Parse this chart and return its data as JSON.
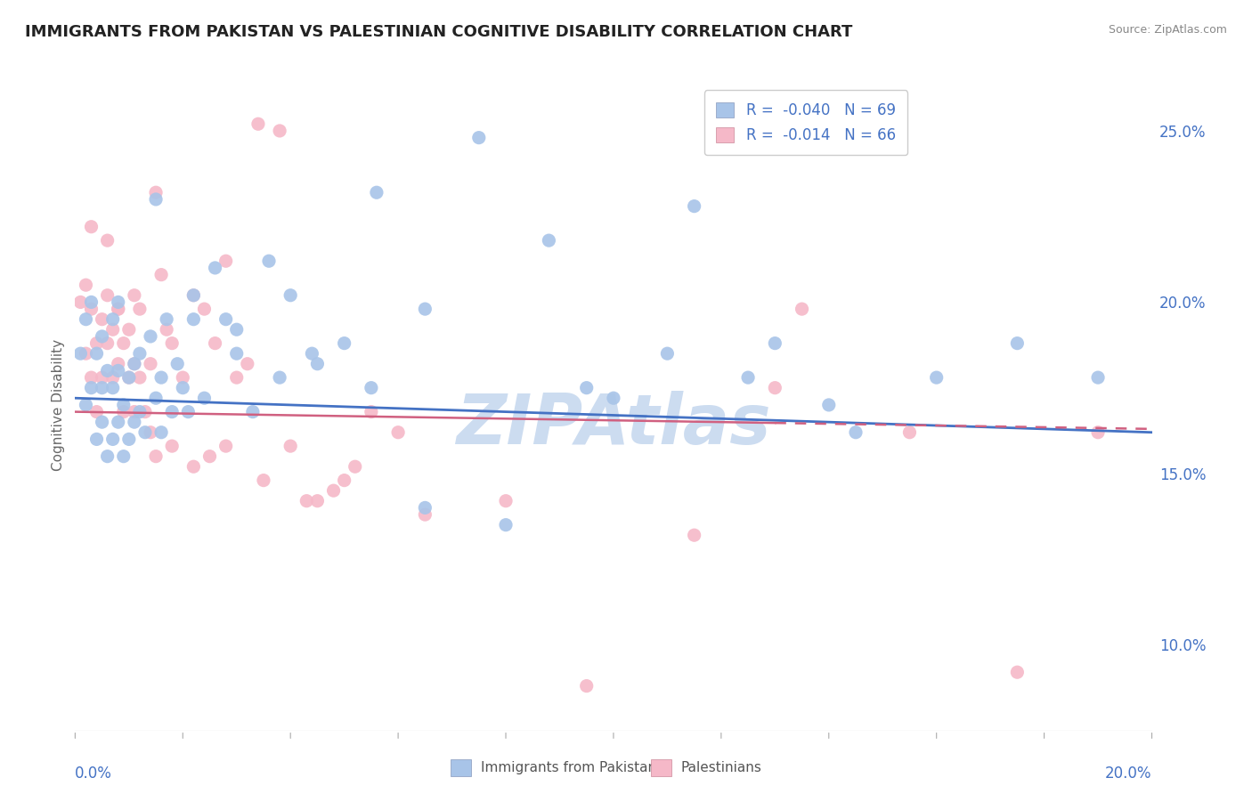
{
  "title": "IMMIGRANTS FROM PAKISTAN VS PALESTINIAN COGNITIVE DISABILITY CORRELATION CHART",
  "source": "Source: ZipAtlas.com",
  "ylabel": "Cognitive Disability",
  "watermark": "ZIPAtlas",
  "legend_bottom1": "Immigrants from Pakistan",
  "legend_bottom2": "Palestinians",
  "blue_color": "#a8c4e8",
  "pink_color": "#f5b8c8",
  "blue_line_color": "#4472c4",
  "pink_line_color": "#d06080",
  "axis_label_color": "#4472c4",
  "watermark_color": "#ccdcf0",
  "background_color": "#ffffff",
  "grid_color": "#d0dce8",
  "xmin": 0.0,
  "xmax": 0.2,
  "ymin": 0.075,
  "ymax": 0.265,
  "R_blue": -0.04,
  "N_blue": 69,
  "R_pink": -0.014,
  "N_pink": 66,
  "blue_scatter_x": [
    0.001,
    0.002,
    0.002,
    0.003,
    0.003,
    0.004,
    0.004,
    0.005,
    0.005,
    0.005,
    0.006,
    0.006,
    0.007,
    0.007,
    0.007,
    0.008,
    0.008,
    0.008,
    0.009,
    0.009,
    0.01,
    0.01,
    0.011,
    0.011,
    0.012,
    0.012,
    0.013,
    0.014,
    0.015,
    0.016,
    0.016,
    0.017,
    0.018,
    0.019,
    0.02,
    0.021,
    0.022,
    0.024,
    0.026,
    0.028,
    0.03,
    0.033,
    0.036,
    0.04,
    0.044,
    0.05,
    0.056,
    0.065,
    0.075,
    0.088,
    0.1,
    0.115,
    0.13,
    0.145,
    0.16,
    0.175,
    0.19,
    0.015,
    0.022,
    0.03,
    0.038,
    0.045,
    0.055,
    0.065,
    0.08,
    0.095,
    0.11,
    0.125,
    0.14
  ],
  "blue_scatter_y": [
    0.185,
    0.17,
    0.195,
    0.175,
    0.2,
    0.16,
    0.185,
    0.165,
    0.175,
    0.19,
    0.155,
    0.18,
    0.16,
    0.175,
    0.195,
    0.165,
    0.18,
    0.2,
    0.155,
    0.17,
    0.16,
    0.178,
    0.165,
    0.182,
    0.168,
    0.185,
    0.162,
    0.19,
    0.172,
    0.178,
    0.162,
    0.195,
    0.168,
    0.182,
    0.175,
    0.168,
    0.202,
    0.172,
    0.21,
    0.195,
    0.192,
    0.168,
    0.212,
    0.202,
    0.185,
    0.188,
    0.232,
    0.198,
    0.248,
    0.218,
    0.172,
    0.228,
    0.188,
    0.162,
    0.178,
    0.188,
    0.178,
    0.23,
    0.195,
    0.185,
    0.178,
    0.182,
    0.175,
    0.14,
    0.135,
    0.175,
    0.185,
    0.178,
    0.17
  ],
  "pink_scatter_x": [
    0.001,
    0.002,
    0.002,
    0.003,
    0.003,
    0.004,
    0.004,
    0.005,
    0.005,
    0.006,
    0.006,
    0.007,
    0.007,
    0.008,
    0.008,
    0.009,
    0.009,
    0.01,
    0.01,
    0.011,
    0.011,
    0.012,
    0.012,
    0.013,
    0.014,
    0.015,
    0.016,
    0.017,
    0.018,
    0.02,
    0.022,
    0.024,
    0.026,
    0.028,
    0.03,
    0.032,
    0.034,
    0.04,
    0.045,
    0.05,
    0.055,
    0.06,
    0.003,
    0.006,
    0.008,
    0.011,
    0.014,
    0.018,
    0.022,
    0.028,
    0.035,
    0.043,
    0.052,
    0.065,
    0.08,
    0.095,
    0.115,
    0.135,
    0.155,
    0.175,
    0.19,
    0.13,
    0.048,
    0.038,
    0.025,
    0.015
  ],
  "pink_scatter_y": [
    0.2,
    0.185,
    0.205,
    0.178,
    0.198,
    0.168,
    0.188,
    0.178,
    0.195,
    0.188,
    0.202,
    0.178,
    0.192,
    0.182,
    0.198,
    0.168,
    0.188,
    0.178,
    0.192,
    0.168,
    0.182,
    0.178,
    0.198,
    0.168,
    0.182,
    0.232,
    0.208,
    0.192,
    0.188,
    0.178,
    0.202,
    0.198,
    0.188,
    0.212,
    0.178,
    0.182,
    0.252,
    0.158,
    0.142,
    0.148,
    0.168,
    0.162,
    0.222,
    0.218,
    0.198,
    0.202,
    0.162,
    0.158,
    0.152,
    0.158,
    0.148,
    0.142,
    0.152,
    0.138,
    0.142,
    0.088,
    0.132,
    0.198,
    0.162,
    0.092,
    0.162,
    0.175,
    0.145,
    0.25,
    0.155,
    0.155
  ]
}
